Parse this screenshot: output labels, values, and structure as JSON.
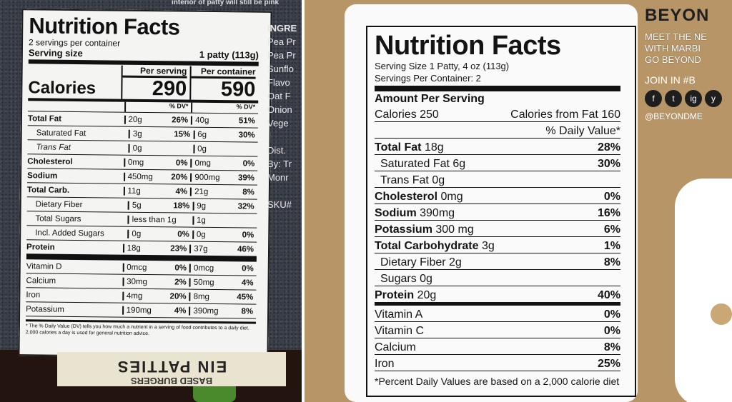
{
  "left_label": {
    "title": "Nutrition Facts",
    "top_text": "interior of patty will still be pink",
    "servings": "2 servings per container",
    "serving_size_label": "Serving size",
    "serving_size_value": "1 patty (113g)",
    "calories_label": "Calories",
    "per_serving_label": "Per serving",
    "per_container_label": "Per container",
    "calories_serving": "290",
    "calories_container": "590",
    "dv_header": "% DV*",
    "rows": [
      {
        "name": "Total Fat",
        "s_amt": "20g",
        "s_dv": "26%",
        "c_amt": "40g",
        "c_dv": "51%",
        "bold": true
      },
      {
        "name": "Saturated Fat",
        "s_amt": "3g",
        "s_dv": "15%",
        "c_amt": "6g",
        "c_dv": "30%",
        "indent": true
      },
      {
        "name": "Trans Fat",
        "s_amt": "0g",
        "s_dv": "",
        "c_amt": "0g",
        "c_dv": "",
        "indent": true
      },
      {
        "name": "Cholesterol",
        "s_amt": "0mg",
        "s_dv": "0%",
        "c_amt": "0mg",
        "c_dv": "0%",
        "bold": true
      },
      {
        "name": "Sodium",
        "s_amt": "450mg",
        "s_dv": "20%",
        "c_amt": "900mg",
        "c_dv": "39%",
        "bold": true
      },
      {
        "name": "Total Carb.",
        "s_amt": "11g",
        "s_dv": "4%",
        "c_amt": "21g",
        "c_dv": "8%",
        "bold": true
      },
      {
        "name": "Dietary Fiber",
        "s_amt": "5g",
        "s_dv": "18%",
        "c_amt": "9g",
        "c_dv": "32%",
        "indent": true
      },
      {
        "name": "Total Sugars",
        "s_amt": "less than 1g",
        "s_dv": "",
        "c_amt": "1g",
        "c_dv": "",
        "indent": true
      },
      {
        "name": "Incl. Added Sugars",
        "s_amt": "0g",
        "s_dv": "0%",
        "c_amt": "0g",
        "c_dv": "0%",
        "indent": true
      },
      {
        "name": "Protein",
        "s_amt": "18g",
        "s_dv": "23%",
        "c_amt": "37g",
        "c_dv": "46%",
        "bold": true
      },
      {
        "name": "Vitamin D",
        "s_amt": "0mcg",
        "s_dv": "0%",
        "c_amt": "0mcg",
        "c_dv": "0%"
      },
      {
        "name": "Calcium",
        "s_amt": "30mg",
        "s_dv": "2%",
        "c_amt": "50mg",
        "c_dv": "4%"
      },
      {
        "name": "Iron",
        "s_amt": "4mg",
        "s_dv": "20%",
        "c_amt": "8mg",
        "c_dv": "45%"
      },
      {
        "name": "Potassium",
        "s_amt": "190mg",
        "s_dv": "4%",
        "c_amt": "390mg",
        "c_dv": "8%"
      }
    ],
    "footnote": "* The % Daily Value (DV) tells you how much a nutrient in a serving of food contributes to a daily diet. 2,000 calories a day is used for general nutrition advice.",
    "ingredients_lines": [
      "INGRE",
      "Pea Pr",
      "Pea Pr",
      "Sunflo",
      "Flavo",
      "Oat F",
      "Onion",
      "Vege",
      "",
      "Dist.",
      "By: Tr",
      "Monr",
      "",
      "SKU#"
    ],
    "bottom_line1": "BASED BURGERS",
    "bottom_line2": "EIN PATTIES"
  },
  "right_label": {
    "title": "Nutrition Facts",
    "serving_size": "Serving Size 1 Patty, 4 oz (113g)",
    "servings_per_container": "Servings Per Container: 2",
    "amount_per_serving": "Amount Per Serving",
    "calories": "Calories 250",
    "calories_from_fat": "Calories from Fat 160",
    "dv_header": "% Daily Value*",
    "rows": [
      {
        "name": "Total Fat",
        "amt": "18g",
        "dv": "28%",
        "bold": true
      },
      {
        "name": "Saturated Fat",
        "amt": "6g",
        "dv": "30%",
        "indent": true
      },
      {
        "name": "Trans Fat",
        "amt": "0g",
        "dv": "",
        "indent": true
      },
      {
        "name": "Cholesterol",
        "amt": "0mg",
        "dv": "0%",
        "bold": true
      },
      {
        "name": "Sodium",
        "amt": "390mg",
        "dv": "16%",
        "bold": true
      },
      {
        "name": "Potassium",
        "amt": "300 mg",
        "dv": "6%",
        "bold": true
      },
      {
        "name": "Total Carbohydrate",
        "amt": "3g",
        "dv": "1%",
        "bold": true
      },
      {
        "name": "Dietary Fiber",
        "amt": "2g",
        "dv": "8%",
        "indent": true
      },
      {
        "name": "Sugars",
        "amt": "0g",
        "dv": "",
        "indent": true
      },
      {
        "name": "Protein",
        "amt": "20g",
        "dv": "40%",
        "bold": true
      },
      {
        "name": "Vitamin A",
        "amt": "",
        "dv": "0%"
      },
      {
        "name": "Vitamin C",
        "amt": "",
        "dv": "0%"
      },
      {
        "name": "Calcium",
        "amt": "",
        "dv": "8%"
      },
      {
        "name": "Iron",
        "amt": "",
        "dv": "25%"
      }
    ],
    "footnote": "*Percent Daily Values are based on a 2,000 calorie diet"
  },
  "brand": {
    "logo": "BEYON",
    "tagline_lines": [
      "MEET THE NE",
      "WITH MARBI",
      "GO BEYOND"
    ],
    "join": "JOIN IN #B",
    "social_icons": [
      "f",
      "t",
      "ig",
      "y"
    ],
    "handle": "@BEYONDME"
  }
}
